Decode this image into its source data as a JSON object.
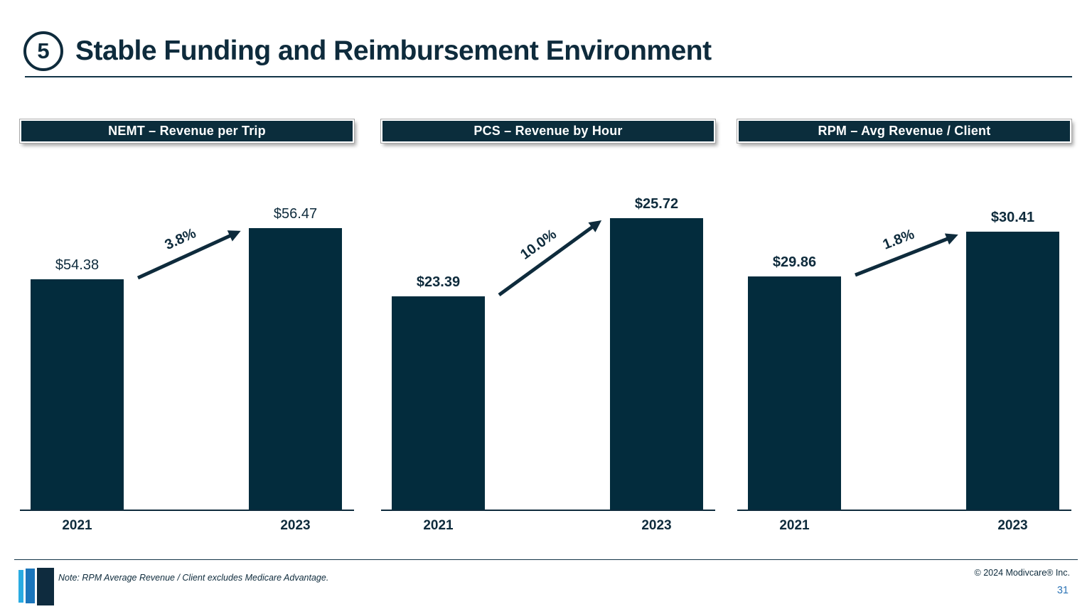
{
  "slide": {
    "number_badge": "5",
    "title": "Stable Funding and Reimbursement Environment",
    "note": "Note: RPM Average Revenue / Client excludes Medicare Advantage.",
    "copyright": "© 2024 Modivcare® Inc.",
    "page_number": "31"
  },
  "colors": {
    "navy_text": "#0e2b3c",
    "bar_fill": "#032c3d",
    "badge_background": "#0b2d3c",
    "page_number_blue": "#2e75b6",
    "logo_light_blue": "#29abe2",
    "logo_mid_blue": "#1b75bb",
    "logo_navy": "#0e2b3e"
  },
  "chart_data": [
    {
      "type": "bar",
      "title": "NEMT – Revenue per Trip",
      "categories": [
        "2021",
        "2023"
      ],
      "values": [
        54.38,
        56.47
      ],
      "value_labels": [
        "$54.38",
        "$56.47"
      ],
      "growth_label": "3.8%",
      "ylabel": "",
      "ylim": [
        45,
        58.6
      ],
      "grid": false,
      "legend": false
    },
    {
      "type": "bar",
      "title": "PCS – Revenue by Hour",
      "categories": [
        "2021",
        "2023"
      ],
      "values": [
        23.39,
        25.72
      ],
      "value_labels": [
        "$23.39",
        "$25.72"
      ],
      "growth_label": "10.0%",
      "ylabel": "",
      "ylim": [
        17,
        27
      ],
      "grid": false,
      "legend": false
    },
    {
      "type": "bar",
      "title": "RPM – Avg Revenue / Client",
      "categories": [
        "2021",
        "2023"
      ],
      "values": [
        29.86,
        30.41
      ],
      "value_labels": [
        "$29.86",
        "$30.41"
      ],
      "growth_label": "1.8%",
      "ylabel": "",
      "ylim": [
        27,
        31.1
      ],
      "grid": false,
      "legend": false
    }
  ]
}
